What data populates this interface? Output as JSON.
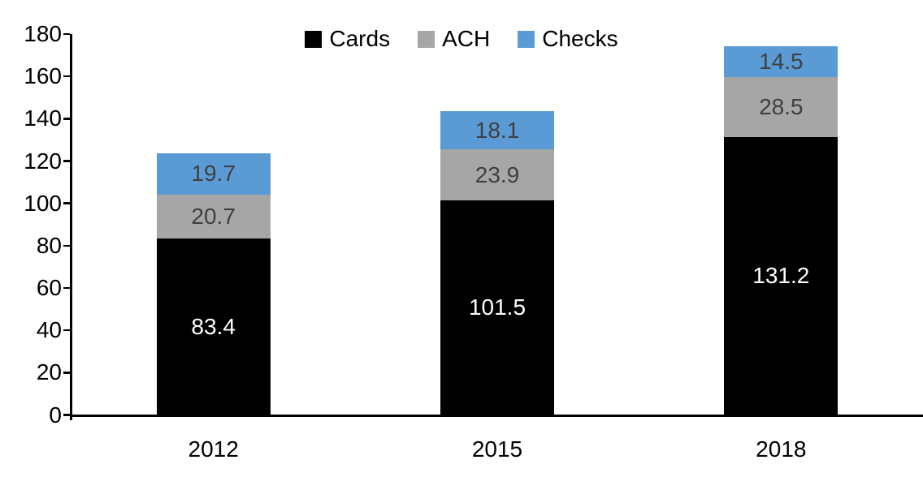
{
  "chart_data": {
    "type": "bar",
    "stacked": true,
    "categories": [
      "2012",
      "2015",
      "2018"
    ],
    "series": [
      {
        "name": "Cards",
        "color": "#000000",
        "label_color": "#FFFFFF",
        "values": [
          83.4,
          101.5,
          131.2
        ]
      },
      {
        "name": "ACH",
        "color": "#A6A6A6",
        "label_color": "#404040",
        "values": [
          20.7,
          23.9,
          28.5
        ]
      },
      {
        "name": "Checks",
        "color": "#5B9BD5",
        "label_color": "#404040",
        "values": [
          19.7,
          18.1,
          14.5
        ]
      }
    ],
    "ylim": [
      0,
      180
    ],
    "yticks": [
      0,
      20,
      40,
      60,
      80,
      100,
      120,
      140,
      160,
      180
    ],
    "grid": false,
    "legend_position": "top-center",
    "axis_color": "#000000",
    "background_color": "#FFFFFF"
  }
}
